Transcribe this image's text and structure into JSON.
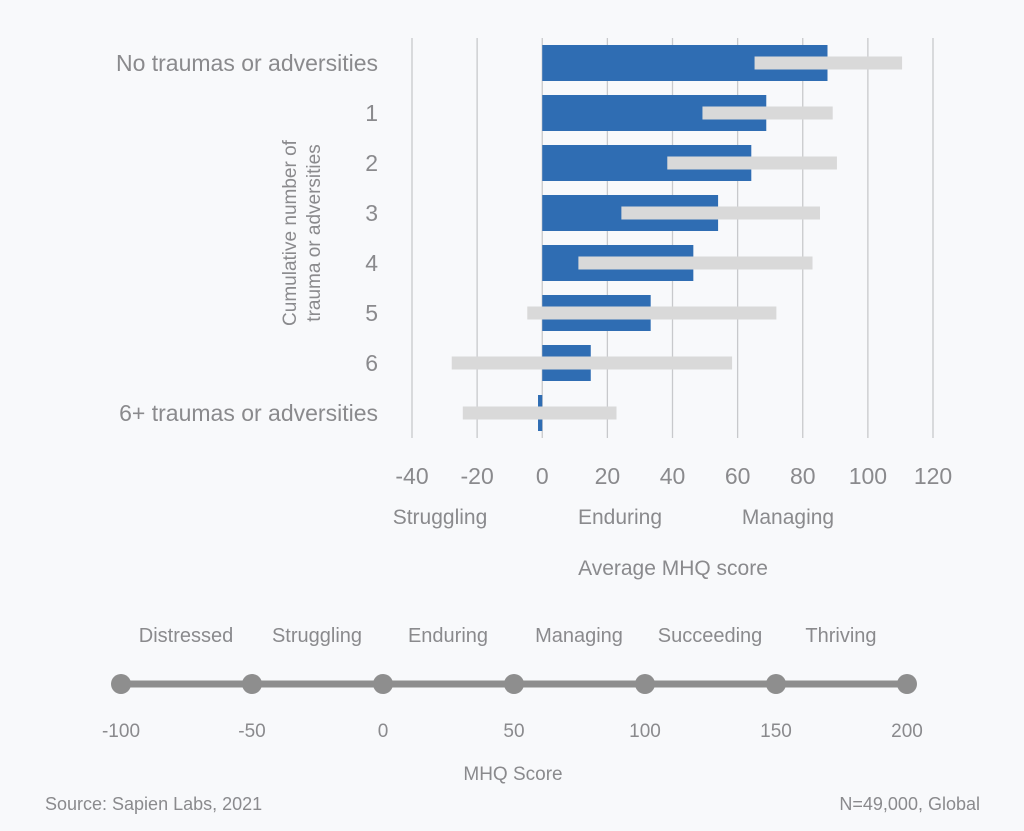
{
  "chart_data": {
    "type": "bar",
    "orientation": "horizontal",
    "categories": [
      "No traumas or adversities",
      "1",
      "2",
      "3",
      "4",
      "5",
      "6",
      "6+ traumas or adversities"
    ],
    "series": [
      {
        "kind": "bar",
        "color": "#2f6db3",
        "values": [
          87.6,
          68.8,
          64.2,
          54.0,
          46.4,
          33.3,
          14.9,
          -1.3
        ]
      },
      {
        "kind": "range",
        "color": "#d9d9d9",
        "ranges": [
          [
            65.2,
            110.5
          ],
          [
            49.2,
            89.2
          ],
          [
            38.4,
            90.5
          ],
          [
            24.3,
            85.3
          ],
          [
            11.1,
            83.0
          ],
          [
            -4.6,
            71.9
          ],
          [
            -27.8,
            58.3
          ],
          [
            -24.4,
            22.8
          ]
        ]
      }
    ],
    "xlim": [
      -40,
      120
    ],
    "xticks": [
      "-40",
      "-20",
      "0",
      "20",
      "40",
      "60",
      "80",
      "100",
      "120"
    ],
    "xtick_values": [
      -40,
      -20,
      0,
      20,
      40,
      60,
      80,
      100,
      120
    ],
    "xlabel": "Average MHQ score",
    "ylabel_lines": [
      "Cumulative number of",
      "trauma or adversities"
    ],
    "grid": "vertical",
    "band_labels": [
      {
        "text": "Struggling",
        "color": "#a3303d"
      },
      {
        "text": "Enduring",
        "color": "#b4b4b6"
      },
      {
        "text": "Managing",
        "color": "#7ea9cb"
      }
    ]
  },
  "scale": {
    "categories": [
      "Distressed",
      "Struggling",
      "Enduring",
      "Managing",
      "Succeeding",
      "Thriving"
    ],
    "ticks": [
      "-100",
      "-50",
      "0",
      "50",
      "100",
      "150",
      "200"
    ],
    "title": "MHQ Score",
    "color": "#8e8e8e"
  },
  "footer": {
    "source": "Source: Sapien Labs, 2021",
    "sample": "N=49,000, Global"
  }
}
